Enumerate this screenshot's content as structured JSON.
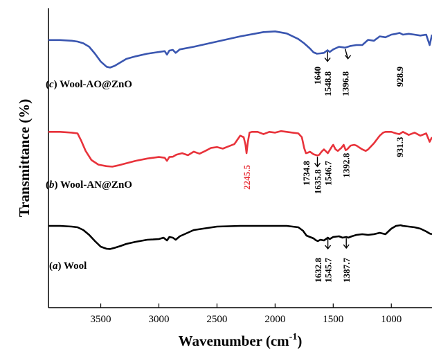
{
  "chart_data": {
    "type": "line",
    "xlabel": "Wavenumber (cm",
    "xlabel_sup": "-1",
    "xlabel_close": ")",
    "ylabel": "Transmittance (%)",
    "xlim": [
      3950,
      650
    ],
    "x_reversed": true,
    "y_ticks_shown": false,
    "grid": false,
    "legend": "none",
    "x_ticks": [
      3500,
      3000,
      2500,
      2000,
      1500,
      1000
    ],
    "series": [
      {
        "id": "c",
        "letter": "c",
        "name": "Wool-AO@ZnO",
        "color": "#3a56b0",
        "x": [
          3950,
          3850,
          3750,
          3700,
          3650,
          3600,
          3550,
          3500,
          3450,
          3420,
          3380,
          3330,
          3280,
          3200,
          3100,
          3000,
          2950,
          2930,
          2910,
          2880,
          2855,
          2820,
          2700,
          2500,
          2300,
          2100,
          2000,
          1900,
          1800,
          1750,
          1700,
          1670,
          1640,
          1610,
          1580,
          1548.8,
          1530,
          1500,
          1450,
          1396.8,
          1350,
          1300,
          1250,
          1200,
          1150,
          1100,
          1050,
          1000,
          960,
          928.9,
          900,
          850,
          800,
          750,
          700,
          670,
          650
        ],
        "y": [
          0.9,
          0.9,
          0.5,
          0,
          -1,
          -3,
          -7,
          -11.5,
          -14.5,
          -15,
          -14,
          -12,
          -10,
          -8.5,
          -7,
          -6,
          -5.5,
          -7.5,
          -5.2,
          -4.8,
          -6.5,
          -4.5,
          -3,
          0,
          3,
          5.5,
          5.9,
          4.7,
          1.5,
          -1,
          -4,
          -6.2,
          -7,
          -6.8,
          -6.5,
          -5,
          -6,
          -4.5,
          -3,
          -3.5,
          -2.5,
          -2,
          -2,
          1,
          0.5,
          3,
          2.5,
          4,
          4.5,
          5,
          4,
          4.5,
          4,
          3.5,
          4,
          -2,
          4
        ],
        "peaks": [
          1640,
          1548.8,
          1396.8,
          928.9
        ]
      },
      {
        "id": "b",
        "letter": "b",
        "name": "Wool-AN@ZnO",
        "color": "#e8333b",
        "x": [
          3950,
          3850,
          3750,
          3700,
          3670,
          3630,
          3580,
          3520,
          3450,
          3400,
          3350,
          3300,
          3200,
          3100,
          3000,
          2950,
          2930,
          2910,
          2880,
          2850,
          2800,
          2750,
          2700,
          2650,
          2600,
          2550,
          2500,
          2450,
          2400,
          2350,
          2300,
          2270,
          2255,
          2245.5,
          2235,
          2220,
          2200,
          2150,
          2100,
          2050,
          2000,
          1950,
          1900,
          1850,
          1800,
          1770,
          1750,
          1734.8,
          1720,
          1700,
          1670,
          1635.8,
          1620,
          1600,
          1580,
          1546.7,
          1530,
          1510,
          1500,
          1480,
          1460,
          1430,
          1410,
          1392.8,
          1380,
          1350,
          1320,
          1300,
          1270,
          1250,
          1220,
          1200,
          1150,
          1100,
          1070,
          1050,
          1000,
          960,
          931.3,
          900,
          850,
          800,
          750,
          700,
          670,
          650
        ],
        "y": [
          13.5,
          13.5,
          13,
          12.5,
          8,
          1,
          -5,
          -8,
          -9,
          -9.3,
          -8.5,
          -7.5,
          -5.5,
          -4,
          -3,
          -3.5,
          -5.5,
          -3,
          -2.8,
          -1.5,
          -0.5,
          -1.8,
          0.5,
          -0.8,
          1,
          3,
          3.5,
          2.5,
          4,
          5.5,
          11,
          10,
          5,
          -0.5,
          6.5,
          13,
          13.5,
          13.5,
          12,
          13.5,
          13,
          14,
          13.5,
          13,
          12.5,
          10,
          3,
          -0.5,
          -0.2,
          0.5,
          -1.2,
          -2,
          -1.5,
          0.5,
          2,
          -0.5,
          1.5,
          4,
          5,
          2,
          1,
          3,
          5,
          1.5,
          2,
          4.5,
          5,
          4.5,
          3,
          2,
          1,
          2,
          6,
          11,
          13,
          13.5,
          13.5,
          12.5,
          12,
          13.5,
          11.5,
          13,
          11,
          12.5,
          7,
          10
        ],
        "peaks": [
          2245.5,
          1734.8,
          1635.8,
          1546.7,
          1392.8,
          931.3
        ]
      },
      {
        "id": "a",
        "letter": "a",
        "name": "Wool",
        "color": "#000000",
        "x": [
          3950,
          3850,
          3750,
          3700,
          3650,
          3600,
          3550,
          3500,
          3450,
          3420,
          3380,
          3330,
          3280,
          3200,
          3100,
          3050,
          3000,
          2960,
          2930,
          2910,
          2880,
          2855,
          2820,
          2700,
          2500,
          2300,
          2100,
          2000,
          1900,
          1800,
          1760,
          1730,
          1700,
          1670,
          1650,
          1632.8,
          1610,
          1580,
          1545.7,
          1530,
          1500,
          1450,
          1420,
          1387.7,
          1370,
          1340,
          1300,
          1250,
          1200,
          1150,
          1100,
          1050,
          1000,
          960,
          920,
          900,
          850,
          800,
          750,
          700,
          670,
          650
        ],
        "y": [
          0,
          0,
          -0.5,
          -1,
          -3,
          -6.5,
          -11,
          -15,
          -16.5,
          -16.7,
          -15.8,
          -14.5,
          -13,
          -11.5,
          -10,
          -9.8,
          -9.5,
          -8.5,
          -10.5,
          -8,
          -8.5,
          -10,
          -7.5,
          -3,
          -0.5,
          0,
          0,
          0,
          0,
          -1,
          -3.5,
          -7,
          -8,
          -9,
          -10.3,
          -11,
          -10,
          -10.5,
          -8.5,
          -9.5,
          -8,
          -7.5,
          -8.5,
          -8,
          -8.5,
          -7.5,
          -6.5,
          -6,
          -6.5,
          -6,
          -5,
          -6,
          -2,
          0,
          0.5,
          0,
          -0.5,
          -1,
          -2,
          -4,
          -5.5,
          -6
        ],
        "peaks": [
          1632.8,
          1545.7,
          1387.7
        ]
      }
    ]
  }
}
